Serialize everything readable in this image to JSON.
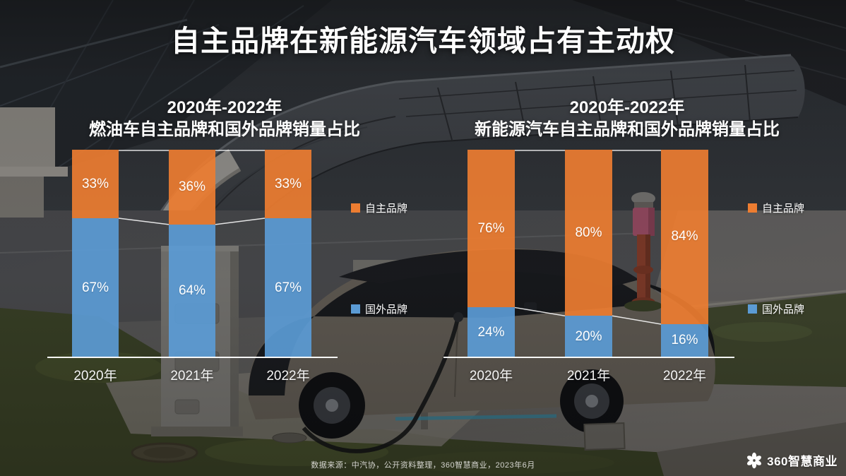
{
  "page": {
    "title": "自主品牌在新能源汽车领域占有主动权",
    "source_note": "数据来源：中汽协，公开资料整理，360智慧商业，2023年6月",
    "brand_name": "360智慧商业"
  },
  "colors": {
    "own_brand_orange": "#ED7D31",
    "foreign_brand_blue": "#5B9BD5",
    "connector_line": "#FFFFFF",
    "text_white": "#FFFFFF"
  },
  "chart_data": [
    {
      "type": "bar",
      "stacked": true,
      "title_line1": "2020年-2022年",
      "title_line2": "燃油车自主品牌和国外品牌销量占比",
      "categories": [
        "2020年",
        "2021年",
        "2022年"
      ],
      "series": [
        {
          "name": "自主品牌",
          "color": "#ED7D31",
          "position": "top",
          "values": [
            33,
            36,
            33
          ],
          "labels": [
            "33%",
            "36%",
            "33%"
          ]
        },
        {
          "name": "国外品牌",
          "color": "#5B9BD5",
          "position": "bottom",
          "values": [
            67,
            64,
            67
          ],
          "labels": [
            "67%",
            "64%",
            "67%"
          ]
        }
      ],
      "unit": "%",
      "ylim": [
        0,
        100
      ],
      "grid": false,
      "legend_position": "right",
      "connector_lines": true
    },
    {
      "type": "bar",
      "stacked": true,
      "title_line1": "2020年-2022年",
      "title_line2": "新能源汽车自主品牌和国外品牌销量占比",
      "categories": [
        "2020年",
        "2021年",
        "2022年"
      ],
      "series": [
        {
          "name": "自主品牌",
          "color": "#ED7D31",
          "position": "top",
          "values": [
            76,
            80,
            84
          ],
          "labels": [
            "76%",
            "80%",
            "84%"
          ]
        },
        {
          "name": "国外品牌",
          "color": "#5B9BD5",
          "position": "bottom",
          "values": [
            24,
            20,
            16
          ],
          "labels": [
            "24%",
            "20%",
            "16%"
          ]
        }
      ],
      "unit": "%",
      "ylim": [
        0,
        100
      ],
      "grid": false,
      "legend_position": "right",
      "connector_lines": true
    }
  ]
}
